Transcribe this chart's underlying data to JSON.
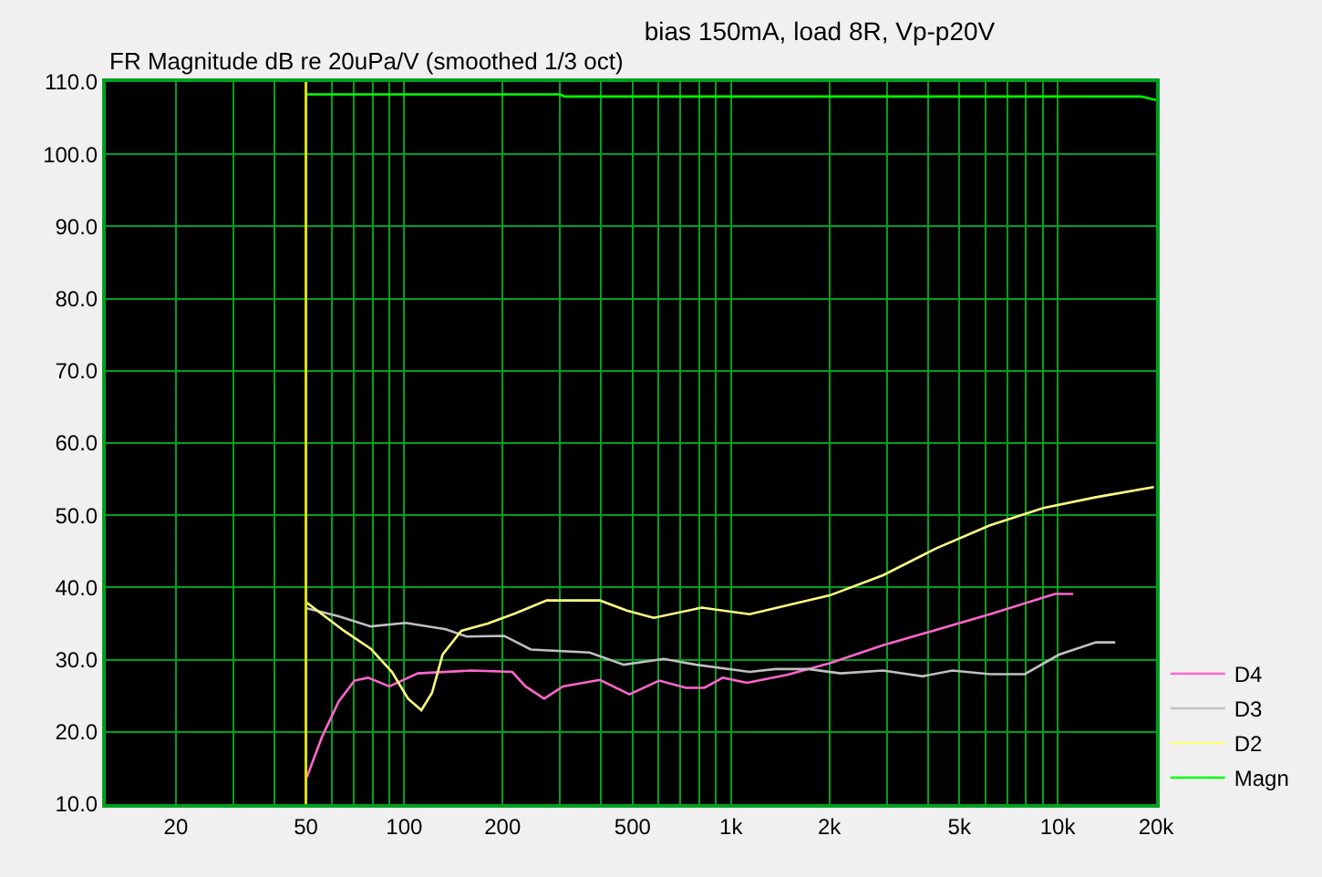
{
  "chart_data": {
    "type": "line",
    "title": "bias 150mA, load 8R, Vp-p20V",
    "ylabel": "FR Magnitude dB re 20uPa/V (smoothed 1/3 oct)",
    "log": "x",
    "xlim": [
      12.2,
      20000
    ],
    "ylim": [
      10,
      110
    ],
    "xticks": [
      20,
      {
        "value": 30,
        "label": null
      },
      {
        "value": 40,
        "label": null
      },
      50,
      {
        "value": 60,
        "label": null
      },
      {
        "value": 70,
        "label": null
      },
      {
        "value": 80,
        "label": null
      },
      {
        "value": 90,
        "label": null
      },
      100,
      200,
      {
        "value": 300,
        "label": null
      },
      {
        "value": 400,
        "label": null
      },
      500,
      {
        "value": 600,
        "label": null
      },
      {
        "value": 700,
        "label": null
      },
      {
        "value": 800,
        "label": null
      },
      {
        "value": 900,
        "label": null
      },
      {
        "value": 1000,
        "label": "1k"
      },
      {
        "value": 2000,
        "label": "2k"
      },
      {
        "value": 3000,
        "label": null
      },
      {
        "value": 4000,
        "label": null
      },
      {
        "value": 5000,
        "label": "5k"
      },
      {
        "value": 6000,
        "label": null
      },
      {
        "value": 7000,
        "label": null
      },
      {
        "value": 8000,
        "label": null
      },
      {
        "value": 9000,
        "label": null
      },
      {
        "value": 10000,
        "label": "10k"
      },
      {
        "value": 20000,
        "label": "20k"
      }
    ],
    "yticks": [
      {
        "value": 10,
        "label": "10.0"
      },
      {
        "value": 20,
        "label": "20.0"
      },
      {
        "value": 30,
        "label": "30.0"
      },
      {
        "value": 40,
        "label": "40.0"
      },
      {
        "value": 50,
        "label": "50.0"
      },
      {
        "value": 60,
        "label": "60.0"
      },
      {
        "value": 70,
        "label": "70.0"
      },
      {
        "value": 80,
        "label": "80.0"
      },
      {
        "value": 90,
        "label": "90.0"
      },
      {
        "value": 100,
        "label": "100.0"
      },
      {
        "value": 110,
        "label": "110.0"
      }
    ],
    "grid": true,
    "legend": "bottom right",
    "marker": "none",
    "line_style": "solid",
    "ref_lines": [
      {
        "axis": "x",
        "value": 50,
        "color": "#e0e000"
      }
    ],
    "series": [
      {
        "name": "D4",
        "color": "#ff66cc",
        "x": [
          50.3,
          56,
          63,
          70.4,
          77.4,
          90,
          110,
          161,
          214,
          235,
          268,
          306,
          397,
          489,
          603,
          728,
          829,
          944,
          1120,
          1485,
          2005,
          2920,
          3940,
          6200,
          9800,
          11150
        ],
        "values": [
          13.7,
          19.3,
          24.2,
          27.1,
          27.5,
          26.3,
          28.1,
          28.5,
          28.3,
          26.3,
          24.6,
          26.3,
          27.2,
          25.2,
          27.1,
          26.1,
          26.1,
          27.5,
          26.8,
          27.9,
          29.5,
          32.0,
          33.7,
          36.3,
          39.1,
          39.1
        ]
      },
      {
        "name": "D3",
        "color": "#c0c0c0",
        "x": [
          50.3,
          63,
          79,
          101,
          134,
          155,
          202,
          244,
          369,
          470,
          623,
          782,
          1140,
          1370,
          1725,
          2165,
          2920,
          3860,
          4760,
          6200,
          7930,
          10100,
          13100,
          15000
        ],
        "values": [
          37.1,
          36.0,
          34.6,
          35.1,
          34.2,
          33.2,
          33.3,
          31.4,
          31.0,
          29.3,
          30.1,
          29.3,
          28.3,
          28.7,
          28.7,
          28.1,
          28.5,
          27.7,
          28.5,
          28.0,
          28.0,
          30.7,
          32.4,
          32.4
        ]
      },
      {
        "name": "D2",
        "color": "#ffff80",
        "x": [
          50.3,
          65.4,
          79,
          91.7,
          102.7,
          112.8,
          121.6,
          131,
          149.5,
          180,
          218,
          273,
          397,
          480,
          580,
          813,
          1140,
          2005,
          2920,
          4240,
          6200,
          9030,
          13100,
          19700
        ],
        "values": [
          37.9,
          34.0,
          31.5,
          28.3,
          24.6,
          23.0,
          25.4,
          30.7,
          34.0,
          35.0,
          36.4,
          38.2,
          38.2,
          36.8,
          35.8,
          37.2,
          36.3,
          38.9,
          41.7,
          45.4,
          48.6,
          51.0,
          52.5,
          53.9
        ]
      },
      {
        "name": "Magn",
        "color": "#00ff00",
        "x": [
          50,
          300,
          310,
          18000,
          20000
        ],
        "values": [
          108.3,
          108.3,
          108.0,
          108.0,
          107.5
        ]
      }
    ]
  }
}
